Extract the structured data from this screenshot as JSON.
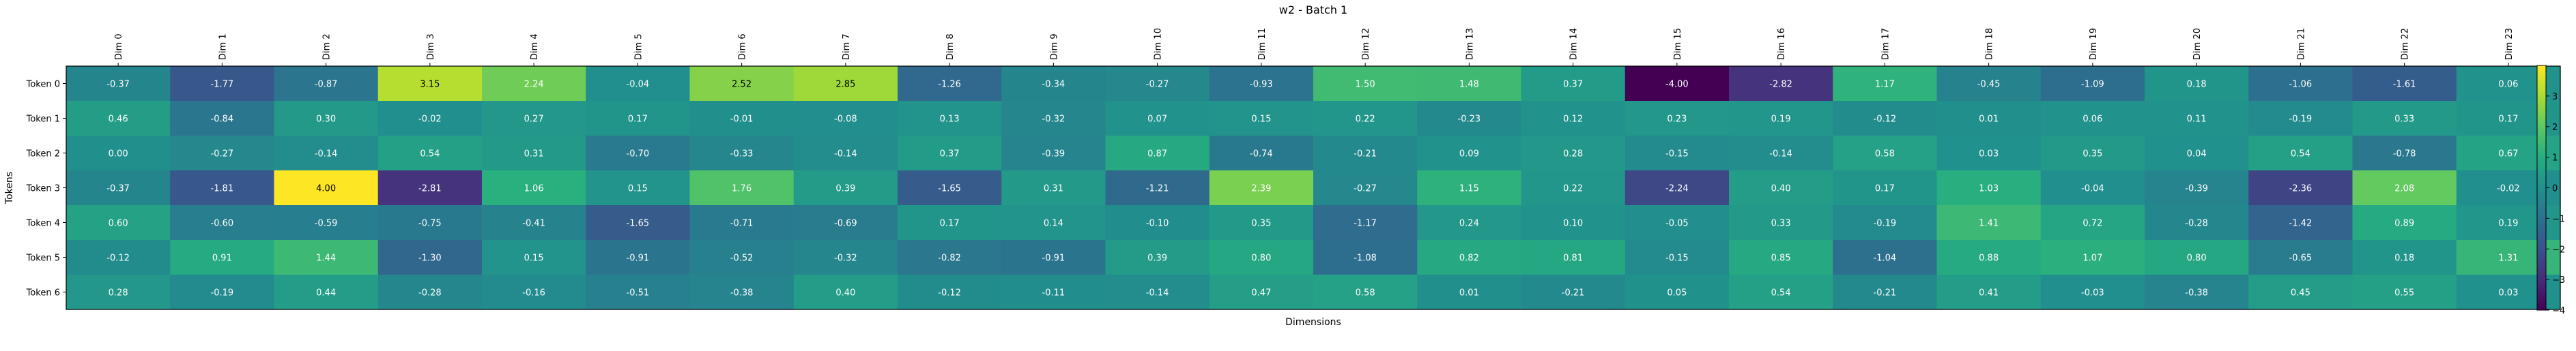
{
  "chart_data": {
    "type": "heatmap",
    "title": "w2 - Batch 1",
    "xlabel": "Dimensions",
    "ylabel": "Tokens",
    "x_labels": [
      "Dim 0",
      "Dim 1",
      "Dim 2",
      "Dim 3",
      "Dim 4",
      "Dim 5",
      "Dim 6",
      "Dim 7",
      "Dim 8",
      "Dim 9",
      "Dim 10",
      "Dim 11",
      "Dim 12",
      "Dim 13",
      "Dim 14",
      "Dim 15",
      "Dim 16",
      "Dim 17",
      "Dim 18",
      "Dim 19",
      "Dim 20",
      "Dim 21",
      "Dim 22",
      "Dim 23"
    ],
    "y_labels": [
      "Token 0",
      "Token 1",
      "Token 2",
      "Token 3",
      "Token 4",
      "Token 5",
      "Token 6"
    ],
    "values": [
      [
        -0.37,
        -1.77,
        -0.87,
        3.15,
        2.24,
        -0.04,
        2.52,
        2.85,
        -1.26,
        -0.34,
        -0.27,
        -0.93,
        1.5,
        1.48,
        0.37,
        -4.0,
        -2.82,
        1.17,
        -0.45,
        -1.09,
        0.18,
        -1.06,
        -1.61,
        0.06
      ],
      [
        0.46,
        -0.84,
        0.3,
        -0.02,
        0.27,
        0.17,
        -0.01,
        -0.08,
        0.13,
        -0.32,
        0.07,
        0.15,
        0.22,
        -0.23,
        0.12,
        0.23,
        0.19,
        -0.12,
        0.01,
        0.06,
        0.11,
        -0.19,
        0.33,
        0.17
      ],
      [
        0.0,
        -0.27,
        -0.14,
        0.54,
        0.31,
        -0.7,
        -0.33,
        -0.14,
        0.37,
        -0.39,
        0.87,
        -0.74,
        -0.21,
        0.09,
        0.28,
        -0.15,
        -0.14,
        0.58,
        0.03,
        0.35,
        0.04,
        0.54,
        -0.78,
        0.67
      ],
      [
        -0.37,
        -1.81,
        4.0,
        -2.81,
        1.06,
        0.15,
        1.76,
        0.39,
        -1.65,
        0.31,
        -1.21,
        2.39,
        -0.27,
        1.15,
        0.22,
        -2.24,
        0.4,
        0.17,
        1.03,
        -0.04,
        -0.39,
        -2.36,
        2.08,
        -0.02
      ],
      [
        0.6,
        -0.6,
        -0.59,
        -0.75,
        -0.41,
        -1.65,
        -0.71,
        -0.69,
        0.17,
        0.14,
        -0.1,
        0.35,
        -1.17,
        0.24,
        0.1,
        -0.05,
        0.33,
        -0.19,
        1.41,
        0.72,
        -0.28,
        -1.42,
        0.89,
        0.19
      ],
      [
        -0.12,
        0.91,
        1.44,
        -1.3,
        0.15,
        -0.91,
        -0.52,
        -0.32,
        -0.82,
        -0.91,
        0.39,
        0.8,
        -1.08,
        0.82,
        0.81,
        -0.15,
        0.85,
        -1.04,
        0.88,
        1.07,
        0.8,
        -0.65,
        0.18,
        1.31
      ],
      [
        0.28,
        -0.19,
        0.44,
        -0.28,
        -0.16,
        -0.51,
        -0.38,
        0.4,
        -0.12,
        -0.11,
        -0.14,
        0.47,
        0.58,
        0.01,
        -0.21,
        0.05,
        0.54,
        -0.21,
        0.41,
        -0.03,
        -0.38,
        0.45,
        0.55,
        0.03
      ]
    ],
    "value_labels": [
      [
        "-0.37",
        "-1.77",
        "-0.87",
        "3.15",
        "2.24",
        "-0.04",
        "2.52",
        "2.85",
        "-1.26",
        "-0.34",
        "-0.27",
        "-0.93",
        "1.50",
        "1.48",
        "0.37",
        "-4.00",
        "-2.82",
        "1.17",
        "-0.45",
        "-1.09",
        "0.18",
        "-1.06",
        "-1.61",
        "0.06"
      ],
      [
        "0.46",
        "-0.84",
        "0.30",
        "-0.02",
        "0.27",
        "0.17",
        "-0.01",
        "-0.08",
        "0.13",
        "-0.32",
        "0.07",
        "0.15",
        "0.22",
        "-0.23",
        "0.12",
        "0.23",
        "0.19",
        "-0.12",
        "0.01",
        "0.06",
        "0.11",
        "-0.19",
        "0.33",
        "0.17"
      ],
      [
        "0.00",
        "-0.27",
        "-0.14",
        "0.54",
        "0.31",
        "-0.70",
        "-0.33",
        "-0.14",
        "0.37",
        "-0.39",
        "0.87",
        "-0.74",
        "-0.21",
        "0.09",
        "0.28",
        "-0.15",
        "-0.14",
        "0.58",
        "0.03",
        "0.35",
        "0.04",
        "0.54",
        "-0.78",
        "0.67"
      ],
      [
        "-0.37",
        "-1.81",
        "4.00",
        "-2.81",
        "1.06",
        "0.15",
        "1.76",
        "0.39",
        "-1.65",
        "0.31",
        "-1.21",
        "2.39",
        "-0.27",
        "1.15",
        "0.22",
        "-2.24",
        "0.40",
        "0.17",
        "1.03",
        "-0.04",
        "-0.39",
        "-2.36",
        "2.08",
        "-0.02"
      ],
      [
        "0.60",
        "-0.60",
        "-0.59",
        "-0.75",
        "-0.41",
        "-1.65",
        "-0.71",
        "-0.69",
        "0.17",
        "0.14",
        "-0.10",
        "0.35",
        "-1.17",
        "0.24",
        "0.10",
        "-0.05",
        "0.33",
        "-0.19",
        "1.41",
        "0.72",
        "-0.28",
        "-1.42",
        "0.89",
        "0.19"
      ],
      [
        "-0.12",
        "0.91",
        "1.44",
        "-1.30",
        "0.15",
        "-0.91",
        "-0.52",
        "-0.32",
        "-0.82",
        "-0.91",
        "0.39",
        "0.80",
        "-1.08",
        "0.82",
        "0.81",
        "-0.15",
        "0.85",
        "-1.04",
        "0.88",
        "1.07",
        "0.80",
        "-0.65",
        "0.18",
        "1.31"
      ],
      [
        "0.28",
        "-0.19",
        "0.44",
        "-0.28",
        "-0.16",
        "-0.51",
        "-0.38",
        "0.40",
        "-0.12",
        "-0.11",
        "-0.14",
        "0.47",
        "0.58",
        "0.01",
        "-0.21",
        "0.05",
        "0.54",
        "-0.21",
        "0.41",
        "-0.03",
        "-0.38",
        "0.45",
        "0.55",
        "0.03"
      ]
    ],
    "colormap": "viridis",
    "vmin": -4,
    "vmax": 4,
    "colorbar_ticks": [
      -4,
      -3,
      -2,
      -1,
      0,
      1,
      2,
      3
    ],
    "colorbar_tick_labels": [
      "−4",
      "−3",
      "−2",
      "−1",
      "0",
      "1",
      "2",
      "3"
    ],
    "grid": false,
    "legend": "colorbar-right"
  }
}
